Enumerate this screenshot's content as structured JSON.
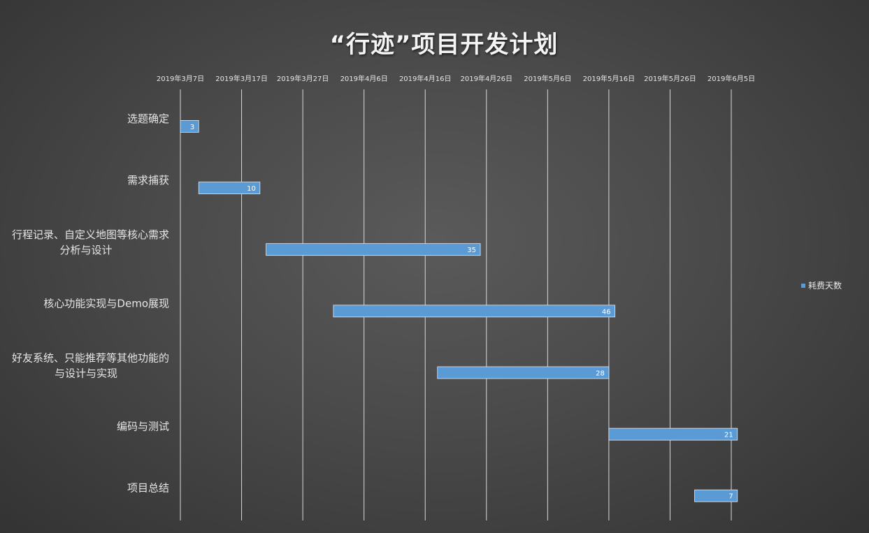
{
  "chart_data": {
    "type": "bar",
    "orientation": "horizontal",
    "title": "“行迹”项目开发计划",
    "x_axis": {
      "position": "top",
      "ticks": [
        "2019年3月7日",
        "2019年3月17日",
        "2019年3月27日",
        "2019年4月6日",
        "2019年4月16日",
        "2019年4月26日",
        "2019年5月6日",
        "2019年5月16日",
        "2019年5月26日",
        "2019年6月5日"
      ],
      "range": [
        "2019-03-07",
        "2019-06-05"
      ],
      "major_unit_days": 10
    },
    "categories": [
      [
        "选题确定"
      ],
      [
        "需求捕获"
      ],
      [
        "行程记录、自定义地图等核心需求",
        "分析与设计"
      ],
      [
        "核心功能实现与Demo展现"
      ],
      [
        "好友系统、只能推荐等其他功能的",
        "与设计与实现"
      ],
      [
        "编码与测试"
      ],
      [
        "项目总结"
      ]
    ],
    "series": [
      {
        "name": "耗费天数",
        "color": "#5b9bd5",
        "start_dates": [
          "2019-03-07",
          "2019-03-10",
          "2019-03-21",
          "2019-04-01",
          "2019-04-18",
          "2019-05-16",
          "2019-05-30"
        ],
        "values": [
          3,
          10,
          35,
          46,
          28,
          21,
          7
        ]
      }
    ],
    "legend": {
      "position": "right",
      "entries": [
        "耗费天数"
      ]
    },
    "grid": true
  }
}
